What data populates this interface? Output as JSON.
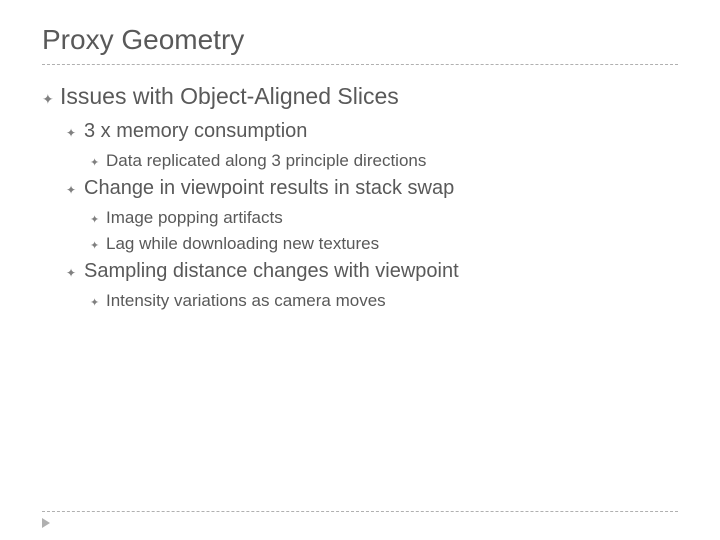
{
  "slide": {
    "title": "Proxy Geometry",
    "bullet_glyph": "✦",
    "colors": {
      "text": "#595959",
      "bullet": "#808080",
      "divider": "#b0b0b0",
      "background": "#ffffff"
    },
    "font_sizes": {
      "title": 28,
      "level1": 23,
      "level2": 20,
      "level3": 17
    },
    "content": {
      "l1_0": "Issues with Object-Aligned Slices",
      "l2_0": "3 x memory consumption",
      "l3_0": "Data replicated along 3 principle directions",
      "l2_1": "Change in viewpoint results in stack swap",
      "l3_1": "Image popping artifacts",
      "l3_2": "Lag while downloading new textures",
      "l2_2": "Sampling distance changes with viewpoint",
      "l3_3": "Intensity variations as camera moves"
    }
  }
}
